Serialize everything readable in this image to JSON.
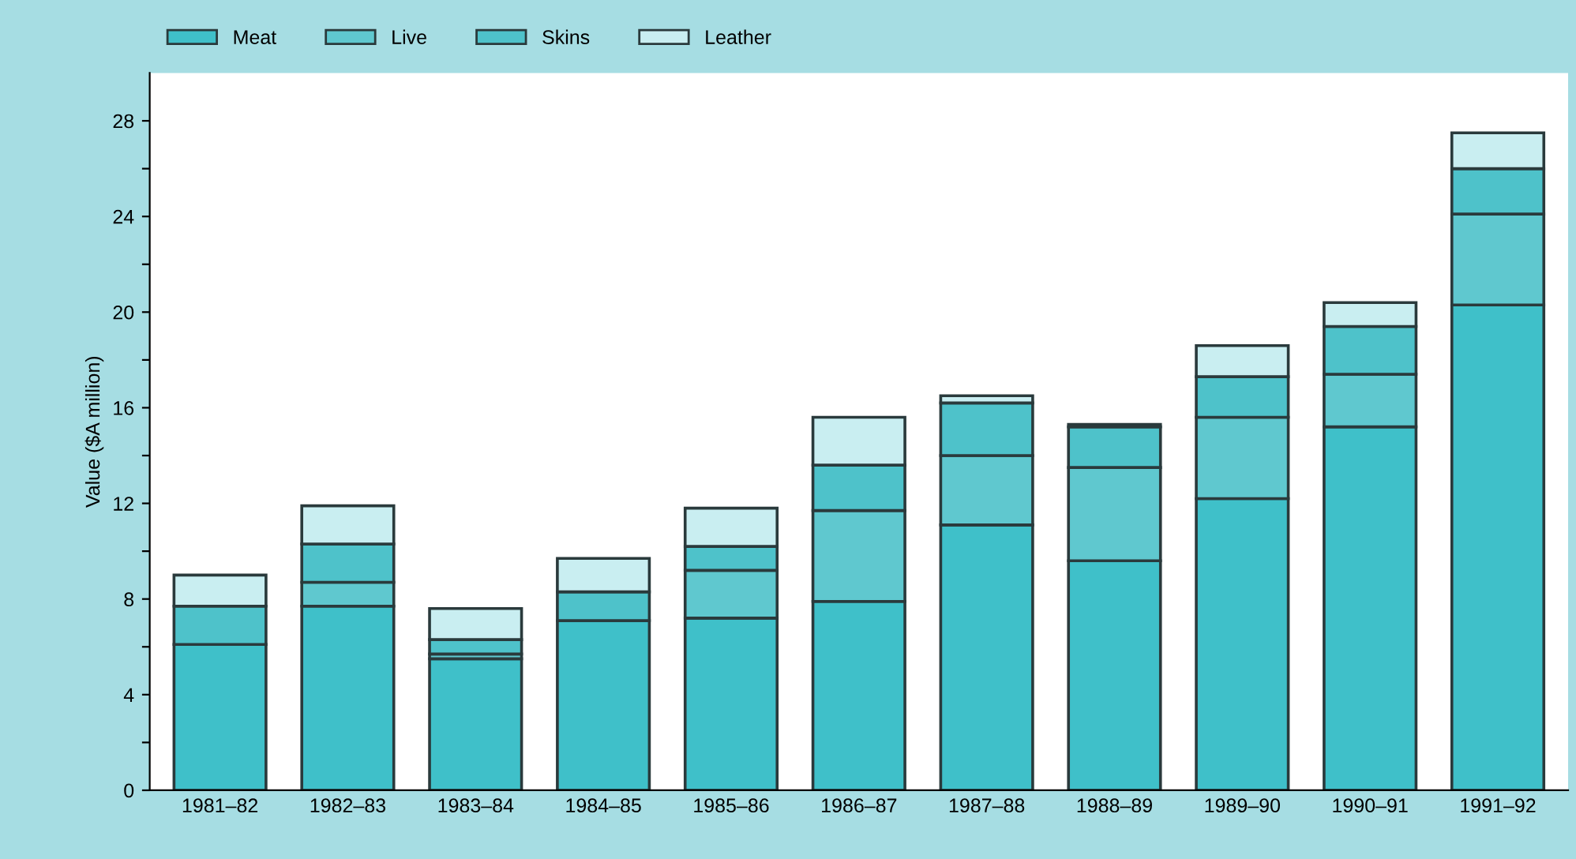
{
  "chart_data": {
    "type": "bar",
    "stacked": true,
    "ylabel": "Value ($A million)",
    "categories": [
      "1981–82",
      "1982–83",
      "1983–84",
      "1984–85",
      "1985–86",
      "1986–87",
      "1987–88",
      "1988–89",
      "1989–90",
      "1990–91",
      "1991–92"
    ],
    "series": [
      {
        "name": "Meat",
        "color": "#3fc0c9",
        "values": [
          6.1,
          7.7,
          5.5,
          7.1,
          7.2,
          7.9,
          11.1,
          9.6,
          12.2,
          15.2,
          20.3
        ]
      },
      {
        "name": "Live",
        "color": "#5fc8cf",
        "values": [
          null,
          1.0,
          0.2,
          null,
          2.0,
          3.8,
          2.9,
          3.9,
          3.4,
          2.2,
          3.8
        ]
      },
      {
        "name": "Skins",
        "color": "#4ec2ca",
        "values": [
          1.6,
          1.6,
          0.6,
          1.2,
          1.0,
          1.9,
          2.2,
          1.7,
          1.7,
          2.0,
          1.9
        ]
      },
      {
        "name": "Leather",
        "color": "#c9eef1",
        "values": [
          1.3,
          1.6,
          1.3,
          1.4,
          1.6,
          2.0,
          0.3,
          0.1,
          1.3,
          1.0,
          1.5
        ]
      }
    ],
    "ylim": [
      0,
      30
    ],
    "yticks": [
      0,
      {
        "value": 2,
        "label": null
      },
      4,
      {
        "value": 6,
        "label": null
      },
      8,
      {
        "value": 10,
        "label": null
      },
      12,
      {
        "value": 14,
        "label": null
      },
      16,
      {
        "value": 18,
        "label": null
      },
      20,
      {
        "value": 22,
        "label": null
      },
      24,
      {
        "value": 26,
        "label": null
      },
      28
    ],
    "grid": false,
    "legend": "top left"
  }
}
